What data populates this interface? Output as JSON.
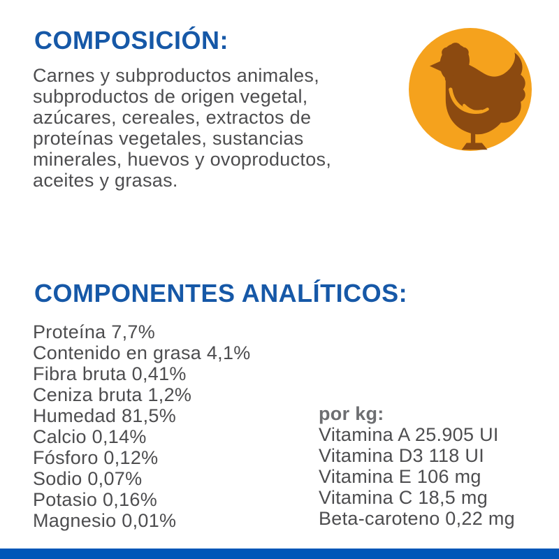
{
  "theme": {
    "heading-blue": "#1658A7",
    "bar-blue": "#0057B8",
    "text-gray": "#4D4D4F",
    "label-gray": "#6D6E71",
    "circle-orange": "#F5A21D",
    "chicken-brown": "#8C4A10",
    "page-bg": "#FFFFFF"
  },
  "composition": {
    "heading": "COMPOSICIÓN:",
    "body_lines": [
      "Carnes y subproductos animales,",
      "subproductos de origen vegetal,",
      "azúcares, cereales, extractos de",
      "proteínas vegetales, sustancias",
      "minerales, huevos y ovoproductos,",
      "aceites y grasas."
    ],
    "icon": "chicken-icon"
  },
  "analytical": {
    "heading": "COMPONENTES ANALÍTICOS:",
    "items": [
      "Proteína 7,7%",
      "Contenido en grasa 4,1%",
      "Fibra bruta 0,41%",
      "Ceniza bruta 1,2%",
      "Humedad 81,5%",
      "Calcio 0,14%",
      "Fósforo 0,12%",
      "Sodio 0,07%",
      "Potasio 0,16%",
      "Magnesio 0,01%"
    ],
    "per_kg": {
      "label": "por kg:",
      "items": [
        "Vitamina A 25.905 UI",
        "Vitamina D3 118 UI",
        "Vitamina E 106 mg",
        "Vitamina C 18,5 mg",
        "Beta-caroteno 0,22 mg"
      ]
    }
  }
}
